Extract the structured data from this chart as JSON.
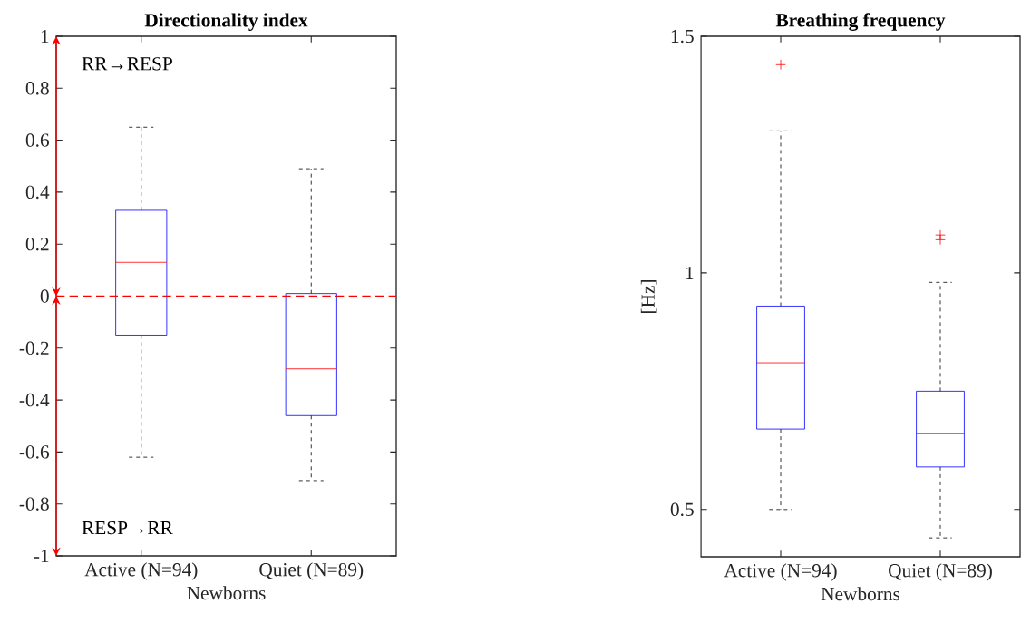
{
  "chart_data": [
    {
      "type": "box",
      "title": "Directionality index",
      "xlabel": "Newborns",
      "categories": [
        "Active (N=94)",
        "Quiet (N=89)"
      ],
      "color": "#0000ff",
      "boxes": [
        {
          "low": -0.62,
          "q1": -0.15,
          "median": 0.13,
          "q3": 0.33,
          "high": 0.65
        },
        {
          "low": -0.71,
          "q1": -0.46,
          "median": -0.28,
          "q3": 0.01,
          "high": 0.49
        }
      ],
      "ylim": [
        -1,
        1
      ],
      "yticks": [
        -1,
        -0.8,
        -0.6,
        -0.4,
        -0.2,
        0,
        0.2,
        0.4,
        0.6,
        0.8,
        1
      ],
      "ref_lines": [
        {
          "axis": "y",
          "value": 0,
          "color": "#ff0000",
          "line_style": "dashed"
        }
      ],
      "annotations": [
        "RR→RESP",
        "RESP→RR"
      ]
    },
    {
      "type": "box",
      "title": "Breathing frequency",
      "xlabel": "Newborns",
      "ylabel": "[Hz]",
      "categories": [
        "Active (N=94)",
        "Quiet (N=89)"
      ],
      "color": "#0000ff",
      "boxes": [
        {
          "low": 0.5,
          "q1": 0.67,
          "median": 0.81,
          "q3": 0.93,
          "high": 1.3,
          "outliers": [
            1.44
          ]
        },
        {
          "low": 0.44,
          "q1": 0.59,
          "median": 0.66,
          "q3": 0.75,
          "high": 0.98,
          "outliers": [
            1.08,
            1.07
          ]
        }
      ],
      "ylim": [
        0.4,
        1.5
      ],
      "yticks": [
        0.5,
        1,
        1.5
      ]
    }
  ]
}
